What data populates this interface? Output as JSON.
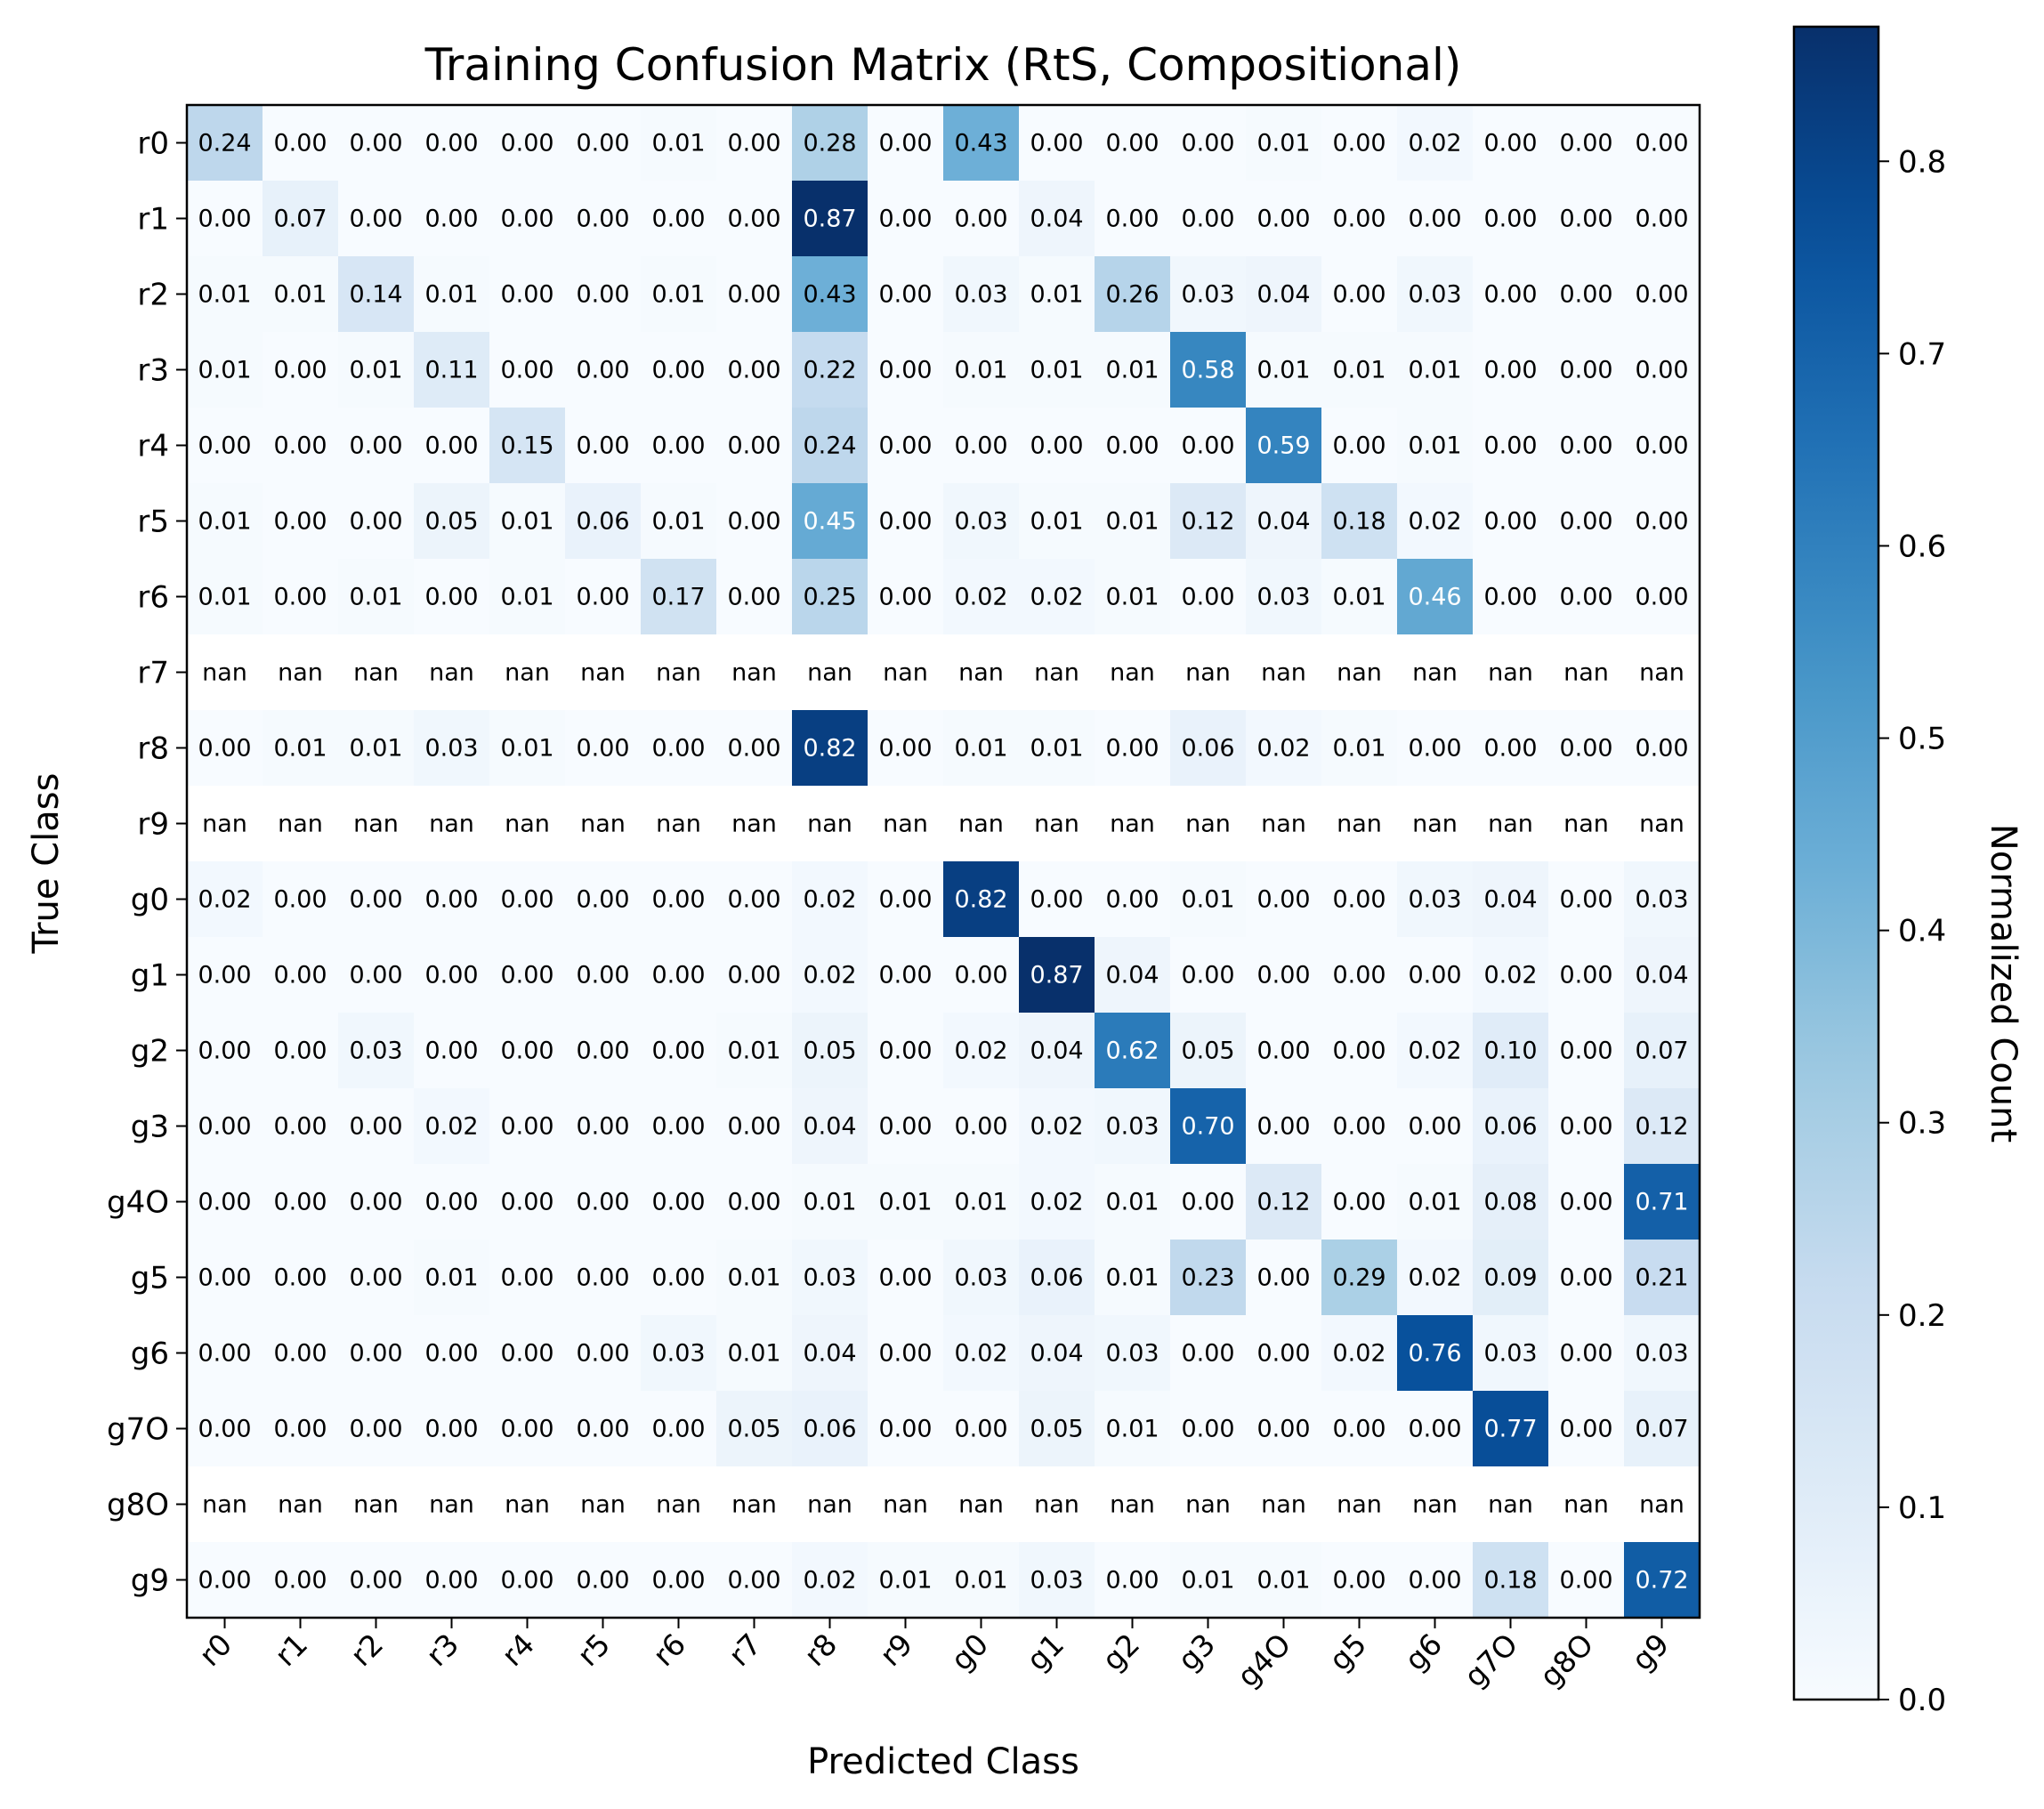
{
  "chart_data": {
    "type": "heatmap",
    "title": "Training Confusion Matrix (RtS, Compositional)",
    "xlabel": "Predicted Class",
    "ylabel": "True Class",
    "categories": [
      "r0",
      "r1",
      "r2",
      "r3",
      "r4",
      "r5",
      "r6",
      "r7",
      "r8",
      "r9",
      "g0",
      "g1",
      "g2",
      "g3",
      "g4O",
      "g5",
      "g6",
      "g7O",
      "g8O",
      "g9"
    ],
    "values": [
      [
        0.24,
        0.0,
        0.0,
        0.0,
        0.0,
        0.0,
        0.01,
        0.0,
        0.28,
        0.0,
        0.43,
        0.0,
        0.0,
        0.0,
        0.01,
        0.0,
        0.02,
        0.0,
        0.0,
        0.0
      ],
      [
        0.0,
        0.07,
        0.0,
        0.0,
        0.0,
        0.0,
        0.0,
        0.0,
        0.87,
        0.0,
        0.0,
        0.04,
        0.0,
        0.0,
        0.0,
        0.0,
        0.0,
        0.0,
        0.0,
        0.0
      ],
      [
        0.01,
        0.01,
        0.14,
        0.01,
        0.0,
        0.0,
        0.01,
        0.0,
        0.43,
        0.0,
        0.03,
        0.01,
        0.26,
        0.03,
        0.04,
        0.0,
        0.03,
        0.0,
        0.0,
        0.0
      ],
      [
        0.01,
        0.0,
        0.01,
        0.11,
        0.0,
        0.0,
        0.0,
        0.0,
        0.22,
        0.0,
        0.01,
        0.01,
        0.01,
        0.58,
        0.01,
        0.01,
        0.01,
        0.0,
        0.0,
        0.0
      ],
      [
        0.0,
        0.0,
        0.0,
        0.0,
        0.15,
        0.0,
        0.0,
        0.0,
        0.24,
        0.0,
        0.0,
        0.0,
        0.0,
        0.0,
        0.59,
        0.0,
        0.01,
        0.0,
        0.0,
        0.0
      ],
      [
        0.01,
        0.0,
        0.0,
        0.05,
        0.01,
        0.06,
        0.01,
        0.0,
        0.45,
        0.0,
        0.03,
        0.01,
        0.01,
        0.12,
        0.04,
        0.18,
        0.02,
        0.0,
        0.0,
        0.0
      ],
      [
        0.01,
        0.0,
        0.01,
        0.0,
        0.01,
        0.0,
        0.17,
        0.0,
        0.25,
        0.0,
        0.02,
        0.02,
        0.01,
        0.0,
        0.03,
        0.01,
        0.46,
        0.0,
        0.0,
        0.0
      ],
      [
        null,
        null,
        null,
        null,
        null,
        null,
        null,
        null,
        null,
        null,
        null,
        null,
        null,
        null,
        null,
        null,
        null,
        null,
        null,
        null
      ],
      [
        0.0,
        0.01,
        0.01,
        0.03,
        0.01,
        0.0,
        0.0,
        0.0,
        0.82,
        0.0,
        0.01,
        0.01,
        0.0,
        0.06,
        0.02,
        0.01,
        0.0,
        0.0,
        0.0,
        0.0
      ],
      [
        null,
        null,
        null,
        null,
        null,
        null,
        null,
        null,
        null,
        null,
        null,
        null,
        null,
        null,
        null,
        null,
        null,
        null,
        null,
        null
      ],
      [
        0.02,
        0.0,
        0.0,
        0.0,
        0.0,
        0.0,
        0.0,
        0.0,
        0.02,
        0.0,
        0.82,
        0.0,
        0.0,
        0.01,
        0.0,
        0.0,
        0.03,
        0.04,
        0.0,
        0.03
      ],
      [
        0.0,
        0.0,
        0.0,
        0.0,
        0.0,
        0.0,
        0.0,
        0.0,
        0.02,
        0.0,
        0.0,
        0.87,
        0.04,
        0.0,
        0.0,
        0.0,
        0.0,
        0.02,
        0.0,
        0.04
      ],
      [
        0.0,
        0.0,
        0.03,
        0.0,
        0.0,
        0.0,
        0.0,
        0.01,
        0.05,
        0.0,
        0.02,
        0.04,
        0.62,
        0.05,
        0.0,
        0.0,
        0.02,
        0.1,
        0.0,
        0.07
      ],
      [
        0.0,
        0.0,
        0.0,
        0.02,
        0.0,
        0.0,
        0.0,
        0.0,
        0.04,
        0.0,
        0.0,
        0.02,
        0.03,
        0.7,
        0.0,
        0.0,
        0.0,
        0.06,
        0.0,
        0.12
      ],
      [
        0.0,
        0.0,
        0.0,
        0.0,
        0.0,
        0.0,
        0.0,
        0.0,
        0.01,
        0.01,
        0.01,
        0.02,
        0.01,
        0.0,
        0.12,
        0.0,
        0.01,
        0.08,
        0.0,
        0.71
      ],
      [
        0.0,
        0.0,
        0.0,
        0.01,
        0.0,
        0.0,
        0.0,
        0.01,
        0.03,
        0.0,
        0.03,
        0.06,
        0.01,
        0.23,
        0.0,
        0.29,
        0.02,
        0.09,
        0.0,
        0.21
      ],
      [
        0.0,
        0.0,
        0.0,
        0.0,
        0.0,
        0.0,
        0.03,
        0.01,
        0.04,
        0.0,
        0.02,
        0.04,
        0.03,
        0.0,
        0.0,
        0.02,
        0.76,
        0.03,
        0.0,
        0.03
      ],
      [
        0.0,
        0.0,
        0.0,
        0.0,
        0.0,
        0.0,
        0.0,
        0.05,
        0.06,
        0.0,
        0.0,
        0.05,
        0.01,
        0.0,
        0.0,
        0.0,
        0.0,
        0.77,
        0.0,
        0.07
      ],
      [
        null,
        null,
        null,
        null,
        null,
        null,
        null,
        null,
        null,
        null,
        null,
        null,
        null,
        null,
        null,
        null,
        null,
        null,
        null,
        null
      ],
      [
        0.0,
        0.0,
        0.0,
        0.0,
        0.0,
        0.0,
        0.0,
        0.0,
        0.02,
        0.01,
        0.01,
        0.03,
        0.0,
        0.01,
        0.01,
        0.0,
        0.0,
        0.18,
        0.0,
        0.72
      ]
    ],
    "nan_label": "nan",
    "colormap": "Blues",
    "colorbar": {
      "label": "Normalized Count",
      "range": [
        0.0,
        0.87
      ],
      "ticks": [
        0.0,
        0.1,
        0.2,
        0.3,
        0.4,
        0.5,
        0.6,
        0.7,
        0.8
      ],
      "tick_labels": [
        "0.0",
        "0.1",
        "0.2",
        "0.3",
        "0.4",
        "0.5",
        "0.6",
        "0.7",
        "0.8"
      ]
    },
    "grid": false
  }
}
